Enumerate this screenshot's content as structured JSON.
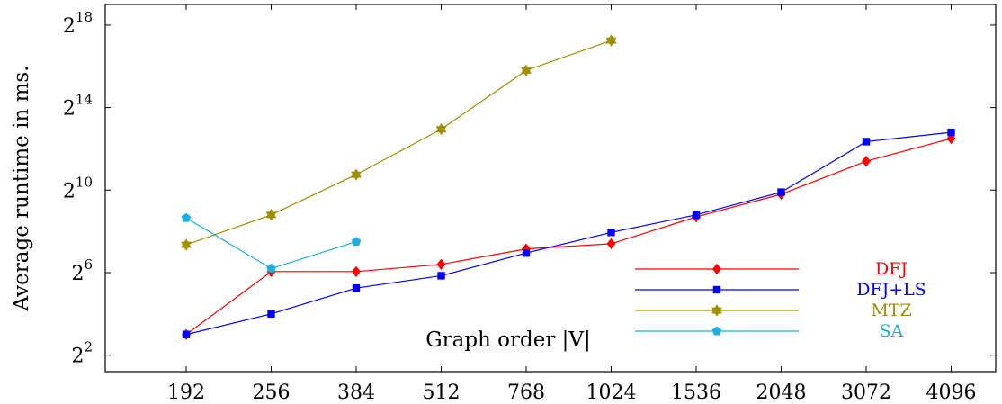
{
  "chart_data": {
    "type": "line",
    "xlabel": "Graph order |V|",
    "ylabel": "Average runtime in ms.",
    "categories": [
      "192",
      "256",
      "384",
      "512",
      "768",
      "1024",
      "1536",
      "2048",
      "3072",
      "4096"
    ],
    "y_scale": "log2",
    "ylim_log2": [
      1.2,
      19.0
    ],
    "y_ticks": [
      {
        "base": "2",
        "exp": "2",
        "value_log2": 2
      },
      {
        "base": "2",
        "exp": "6",
        "value_log2": 6
      },
      {
        "base": "2",
        "exp": "10",
        "value_log2": 10
      },
      {
        "base": "2",
        "exp": "14",
        "value_log2": 14
      },
      {
        "base": "2",
        "exp": "18",
        "value_log2": 18
      }
    ],
    "grid": false,
    "legend_position": "bottom-right",
    "series": [
      {
        "name": "DFJ",
        "color": "#ff0000",
        "marker": "diamond",
        "values_log2": [
          3.0,
          6.05,
          6.05,
          6.4,
          7.15,
          7.4,
          8.7,
          9.8,
          11.4,
          12.5
        ]
      },
      {
        "name": "DFJ+LS",
        "color": "#0000ff",
        "marker": "square",
        "values_log2": [
          3.0,
          4.0,
          5.25,
          5.85,
          6.95,
          7.95,
          8.8,
          9.9,
          12.35,
          12.8
        ]
      },
      {
        "name": "MTZ",
        "color": "#a09000",
        "marker": "star",
        "values_log2": [
          7.35,
          8.8,
          10.75,
          12.95,
          15.8,
          17.25,
          null,
          null,
          null,
          null
        ]
      },
      {
        "name": "SA",
        "color": "#1eaee0",
        "marker": "pentagon",
        "values_log2": [
          8.65,
          6.2,
          7.5,
          null,
          null,
          null,
          null,
          null,
          null,
          null
        ]
      }
    ]
  }
}
